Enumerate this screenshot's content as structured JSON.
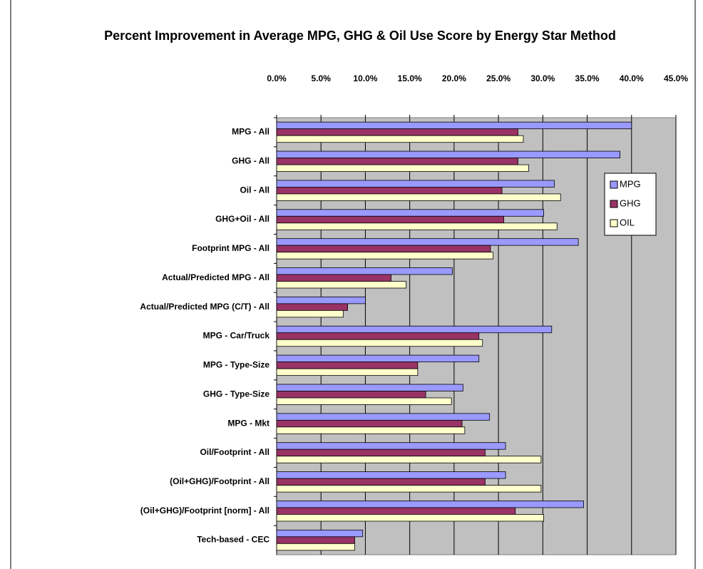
{
  "chart_data": {
    "type": "hbar",
    "title": "Percent Improvement in Average MPG, GHG & Oil Use Score by Energy Star Method",
    "categories": [
      "MPG - All",
      "GHG - All",
      "Oil - All",
      "GHG+Oil - All",
      "Footprint MPG - All",
      "Actual/Predicted MPG - All",
      "Actual/Predicted MPG (C/T) - All",
      "MPG - Car/Truck",
      "MPG - Type-Size",
      "GHG - Type-Size",
      "MPG - Mkt",
      "Oil/Footprint - All",
      "(Oil+GHG)/Footprint - All",
      "(Oil+GHG)/Footprint [norm] - All",
      "Tech-based - CEC"
    ],
    "series": [
      {
        "name": "MPG",
        "color": "#9999ff",
        "values": [
          40.0,
          38.7,
          31.3,
          30.1,
          34.0,
          19.8,
          10.0,
          31.0,
          22.8,
          21.0,
          24.0,
          25.8,
          25.8,
          34.6,
          9.7
        ]
      },
      {
        "name": "GHG",
        "color": "#993366",
        "values": [
          27.2,
          27.2,
          25.4,
          25.6,
          24.1,
          12.9,
          8.0,
          22.8,
          15.9,
          16.8,
          20.9,
          23.5,
          23.5,
          26.9,
          8.8
        ]
      },
      {
        "name": "OIL",
        "color": "#ffffcc",
        "values": [
          27.8,
          28.4,
          32.0,
          31.6,
          24.4,
          14.6,
          7.5,
          23.2,
          15.9,
          19.7,
          21.2,
          29.8,
          29.8,
          30.1,
          8.8
        ]
      }
    ],
    "xlim": [
      0,
      45
    ],
    "xticks": [
      {
        "value": 0,
        "label": "0.0%"
      },
      {
        "value": 5,
        "label": "5.0%"
      },
      {
        "value": 10,
        "label": "10.0%"
      },
      {
        "value": 15,
        "label": "15.0%"
      },
      {
        "value": 20,
        "label": "20.0%"
      },
      {
        "value": 25,
        "label": "25.0%"
      },
      {
        "value": 30,
        "label": "30.0%"
      },
      {
        "value": 35,
        "label": "35.0%"
      },
      {
        "value": 40,
        "label": "40.0%"
      },
      {
        "value": 45,
        "label": "45.0%"
      }
    ],
    "grid": true,
    "legend": "right"
  }
}
